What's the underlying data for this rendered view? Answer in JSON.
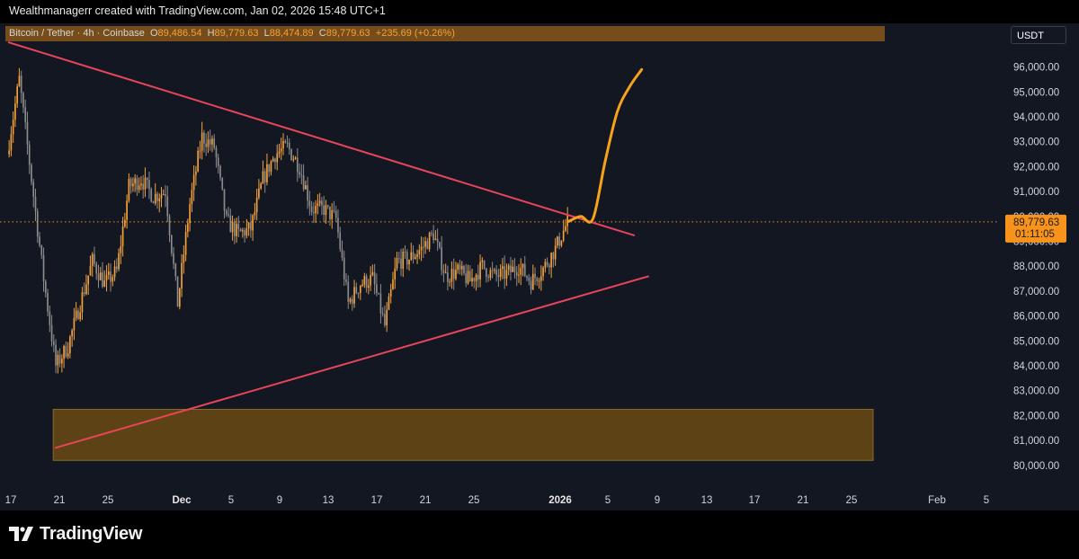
{
  "header": {
    "text": "Wealthmanagerr created with TradingView.com, Jan 02, 2026 15:48 UTC+1"
  },
  "legend": {
    "symbol": "Bitcoin / Tether · 4h · Coinbase",
    "o_label": "O",
    "o_value": "89,486.54",
    "h_label": "H",
    "h_value": "89,779.63",
    "l_label": "L",
    "l_value": "88,474.89",
    "c_label": "C",
    "c_value": "89,779.63",
    "change": "+235.69 (+0.26%)"
  },
  "currency": "USDT",
  "current_price": {
    "price": "89,779.63",
    "countdown": "01:11:05"
  },
  "footer": {
    "brand": "TradingView"
  },
  "colors": {
    "background": "#131722",
    "candle_up": "#f5a23a",
    "candle_down": "#8c8c8c",
    "trendline": "#e8455a",
    "projection": "#f7a21b",
    "demand_zone": "#6b4a14",
    "price_badge": "#f7931a"
  },
  "chart_data": {
    "type": "candlestick",
    "symbol": "BTCUSDT",
    "timeframe": "4h",
    "y_ticks": [
      80000,
      81000,
      82000,
      83000,
      84000,
      85000,
      86000,
      87000,
      88000,
      89000,
      90000,
      91000,
      92000,
      93000,
      94000,
      95000,
      96000
    ],
    "y_tick_labels": [
      "80,000.00",
      "81,000.00",
      "82,000.00",
      "83,000.00",
      "84,000.00",
      "85,000.00",
      "86,000.00",
      "87,000.00",
      "88,000.00",
      "89,000.00",
      "90,000.00",
      "91,000.00",
      "92,000.00",
      "93,000.00",
      "94,000.00",
      "95,000.00",
      "96,000.00"
    ],
    "x_ticks": [
      "17",
      "21",
      "25",
      "Dec",
      "5",
      "9",
      "13",
      "17",
      "21",
      "25",
      "2026",
      "5",
      "9",
      "13",
      "17",
      "21",
      "25",
      "Feb",
      "5"
    ],
    "bold_x_ticks": [
      "Dec",
      "2026"
    ],
    "price_path": [
      {
        "date": "2025-11-17",
        "close": 92500
      },
      {
        "date": "2025-11-18",
        "close": 95500
      },
      {
        "date": "2025-11-19",
        "close": 91500
      },
      {
        "date": "2025-11-20",
        "close": 87500
      },
      {
        "date": "2025-11-21",
        "close": 84000
      },
      {
        "date": "2025-11-22",
        "close": 84800
      },
      {
        "date": "2025-11-23",
        "close": 86500
      },
      {
        "date": "2025-11-24",
        "close": 88200
      },
      {
        "date": "2025-11-25",
        "close": 87300
      },
      {
        "date": "2025-11-26",
        "close": 87800
      },
      {
        "date": "2025-11-27",
        "close": 91200
      },
      {
        "date": "2025-11-28",
        "close": 91500
      },
      {
        "date": "2025-11-29",
        "close": 90800
      },
      {
        "date": "2025-11-30",
        "close": 91000
      },
      {
        "date": "2025-12-01",
        "close": 86500
      },
      {
        "date": "2025-12-02",
        "close": 90500
      },
      {
        "date": "2025-12-03",
        "close": 93200
      },
      {
        "date": "2025-12-04",
        "close": 92800
      },
      {
        "date": "2025-12-05",
        "close": 89800
      },
      {
        "date": "2025-12-06",
        "close": 89300
      },
      {
        "date": "2025-12-07",
        "close": 89500
      },
      {
        "date": "2025-12-08",
        "close": 91500
      },
      {
        "date": "2025-12-09",
        "close": 92500
      },
      {
        "date": "2025-12-10",
        "close": 92800
      },
      {
        "date": "2025-12-11",
        "close": 92000
      },
      {
        "date": "2025-12-12",
        "close": 90300
      },
      {
        "date": "2025-12-13",
        "close": 90300
      },
      {
        "date": "2025-12-14",
        "close": 89900
      },
      {
        "date": "2025-12-15",
        "close": 86500
      },
      {
        "date": "2025-12-16",
        "close": 87300
      },
      {
        "date": "2025-12-17",
        "close": 87500
      },
      {
        "date": "2025-12-18",
        "close": 85600
      },
      {
        "date": "2025-12-19",
        "close": 88200
      },
      {
        "date": "2025-12-20",
        "close": 88300
      },
      {
        "date": "2025-12-21",
        "close": 88700
      },
      {
        "date": "2025-12-22",
        "close": 89300
      },
      {
        "date": "2025-12-23",
        "close": 87600
      },
      {
        "date": "2025-12-24",
        "close": 87800
      },
      {
        "date": "2025-12-25",
        "close": 87400
      },
      {
        "date": "2025-12-26",
        "close": 88000
      },
      {
        "date": "2025-12-27",
        "close": 87600
      },
      {
        "date": "2025-12-28",
        "close": 87700
      },
      {
        "date": "2025-12-29",
        "close": 88000
      },
      {
        "date": "2025-12-30",
        "close": 87400
      },
      {
        "date": "2025-12-31",
        "close": 87900
      },
      {
        "date": "2026-01-01",
        "close": 88700
      },
      {
        "date": "2026-01-02",
        "close": 89780
      }
    ],
    "current_price": 89779.63,
    "upper_trendline": [
      {
        "date": "2025-11-17",
        "price": 97000
      },
      {
        "date": "2026-01-03",
        "price": 89900
      }
    ],
    "lower_trendline": [
      {
        "date": "2025-11-21",
        "price": 80700
      },
      {
        "date": "2026-01-08",
        "price": 87600
      }
    ],
    "demand_zone": {
      "price_low": 80200,
      "price_high": 82250,
      "date_start": "2025-11-21",
      "date_end": "2026-01-27"
    },
    "projection": [
      {
        "date": "2026-01-02",
        "price": 89800
      },
      {
        "date": "2026-01-03",
        "price": 90000
      },
      {
        "date": "2026-01-04",
        "price": 89900
      },
      {
        "date": "2026-01-05",
        "price": 92200
      },
      {
        "date": "2026-01-06",
        "price": 94200
      },
      {
        "date": "2026-01-07",
        "price": 95200
      },
      {
        "date": "2026-01-08",
        "price": 95900
      }
    ]
  }
}
